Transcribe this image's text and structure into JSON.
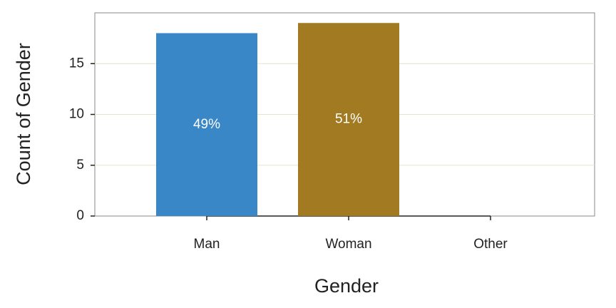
{
  "chart_data": {
    "type": "bar",
    "x_label": "Gender",
    "y_label": "Count of Gender",
    "categories": [
      "Man",
      "Woman",
      "Other"
    ],
    "values": [
      18,
      19,
      0
    ],
    "shares": [
      {
        "value": 49,
        "label": "49%"
      },
      {
        "value": 51,
        "label": "51%"
      },
      null
    ],
    "colors": [
      "#3a87c8",
      "#a27a22",
      "#888888"
    ],
    "ylim": [
      0,
      20
    ],
    "yticks": [
      0,
      5,
      10,
      15
    ],
    "grid": true
  }
}
